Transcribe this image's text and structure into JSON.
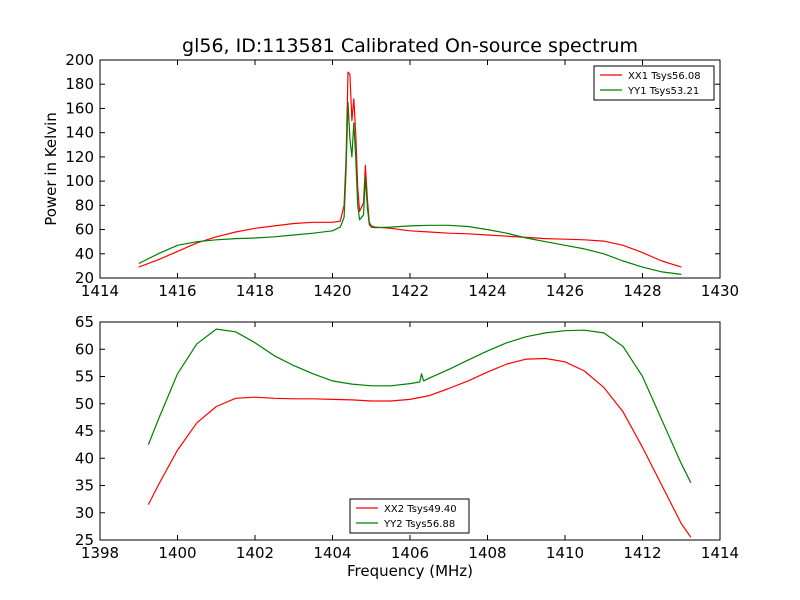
{
  "figure": {
    "title": "gl56, ID:113581 Calibrated On-source spectrum"
  },
  "chart_data": [
    {
      "type": "line",
      "title": "gl56, ID:113581 Calibrated On-source spectrum",
      "xlabel": "",
      "ylabel": "Power in Kelvin",
      "xlim": [
        1414,
        1430
      ],
      "ylim": [
        20,
        200
      ],
      "xticks": [
        1414,
        1416,
        1418,
        1420,
        1422,
        1424,
        1426,
        1428,
        1430
      ],
      "yticks": [
        20,
        40,
        60,
        80,
        100,
        120,
        140,
        160,
        180,
        200
      ],
      "grid": false,
      "legend_position": "top-right",
      "series": [
        {
          "name": "XX1 Tsys56.08",
          "color": "#ff0000",
          "x": [
            1415.0,
            1415.5,
            1416.0,
            1416.5,
            1417.0,
            1417.5,
            1418.0,
            1418.5,
            1419.0,
            1419.5,
            1420.0,
            1420.2,
            1420.3,
            1420.35,
            1420.4,
            1420.45,
            1420.5,
            1420.55,
            1420.6,
            1420.65,
            1420.7,
            1420.8,
            1420.85,
            1420.9,
            1420.95,
            1421.0,
            1421.1,
            1421.5,
            1422.0,
            1422.5,
            1423.0,
            1423.5,
            1424.0,
            1424.5,
            1425.0,
            1425.5,
            1426.0,
            1426.5,
            1427.0,
            1427.5,
            1428.0,
            1428.5,
            1429.0
          ],
          "values": [
            29,
            35,
            42,
            49,
            54,
            58,
            61,
            63,
            65,
            66,
            66,
            67,
            80,
            120,
            190,
            188,
            150,
            168,
            140,
            95,
            75,
            82,
            113,
            85,
            66,
            63,
            62,
            61,
            59,
            58,
            57,
            56.5,
            55.5,
            54.5,
            53.5,
            52.5,
            52,
            51.5,
            50.5,
            47,
            41,
            34,
            29
          ]
        },
        {
          "name": "YY1 Tsys53.21",
          "color": "#008000",
          "x": [
            1415.0,
            1415.5,
            1416.0,
            1416.5,
            1417.0,
            1417.5,
            1418.0,
            1418.5,
            1419.0,
            1419.5,
            1420.0,
            1420.2,
            1420.3,
            1420.35,
            1420.4,
            1420.45,
            1420.5,
            1420.55,
            1420.6,
            1420.65,
            1420.7,
            1420.8,
            1420.85,
            1420.9,
            1420.95,
            1421.0,
            1421.1,
            1421.5,
            1422.0,
            1422.5,
            1423.0,
            1423.5,
            1424.0,
            1424.5,
            1425.0,
            1425.5,
            1426.0,
            1426.5,
            1427.0,
            1427.5,
            1428.0,
            1428.5,
            1429.0
          ],
          "values": [
            32,
            40,
            47,
            50,
            51.5,
            52.5,
            53,
            54,
            55.5,
            57,
            59,
            62,
            70,
            110,
            165,
            135,
            120,
            148,
            120,
            80,
            68,
            72,
            103,
            78,
            64,
            62,
            61.5,
            62,
            63,
            63.5,
            63.5,
            62.5,
            60,
            57,
            53,
            50,
            47,
            44,
            40,
            34,
            29,
            25,
            23
          ]
        }
      ]
    },
    {
      "type": "line",
      "title": "",
      "xlabel": "Frequency (MHz)",
      "ylabel": "",
      "xlim": [
        1398,
        1414
      ],
      "ylim": [
        25,
        65
      ],
      "xticks": [
        1398,
        1400,
        1402,
        1404,
        1406,
        1408,
        1410,
        1412,
        1414
      ],
      "yticks": [
        25,
        30,
        35,
        40,
        45,
        50,
        55,
        60,
        65
      ],
      "grid": false,
      "legend_position": "bottom-center",
      "series": [
        {
          "name": "XX2 Tsys49.40",
          "color": "#ff0000",
          "x": [
            1399.25,
            1399.5,
            1400.0,
            1400.5,
            1401.0,
            1401.5,
            1402.0,
            1402.5,
            1403.0,
            1403.5,
            1404.0,
            1404.5,
            1405.0,
            1405.5,
            1406.0,
            1406.5,
            1407.0,
            1407.5,
            1408.0,
            1408.5,
            1409.0,
            1409.5,
            1410.0,
            1410.5,
            1411.0,
            1411.5,
            1412.0,
            1412.5,
            1413.0,
            1413.25
          ],
          "values": [
            31.5,
            35,
            41.5,
            46.5,
            49.5,
            51,
            51.2,
            51,
            50.9,
            50.9,
            50.8,
            50.7,
            50.5,
            50.5,
            50.8,
            51.5,
            52.8,
            54.2,
            55.8,
            57.3,
            58.2,
            58.3,
            57.7,
            56,
            53,
            48.5,
            42,
            35,
            28,
            25.5
          ]
        },
        {
          "name": "YY2 Tsys56.88",
          "color": "#008000",
          "x": [
            1399.25,
            1399.5,
            1400.0,
            1400.5,
            1401.0,
            1401.5,
            1402.0,
            1402.5,
            1403.0,
            1403.5,
            1404.0,
            1404.5,
            1405.0,
            1405.5,
            1406.0,
            1406.25,
            1406.3,
            1406.35,
            1406.5,
            1407.0,
            1407.5,
            1408.0,
            1408.5,
            1409.0,
            1409.5,
            1410.0,
            1410.5,
            1411.0,
            1411.5,
            1412.0,
            1412.5,
            1413.0,
            1413.25
          ],
          "values": [
            42.5,
            47,
            55.5,
            61,
            63.7,
            63.2,
            61.2,
            58.8,
            57,
            55.5,
            54.2,
            53.6,
            53.3,
            53.3,
            53.7,
            54,
            55.5,
            54.2,
            54.7,
            56.3,
            58,
            59.7,
            61.2,
            62.3,
            63,
            63.4,
            63.5,
            63,
            60.5,
            55,
            47,
            39,
            35.5
          ]
        }
      ]
    }
  ]
}
